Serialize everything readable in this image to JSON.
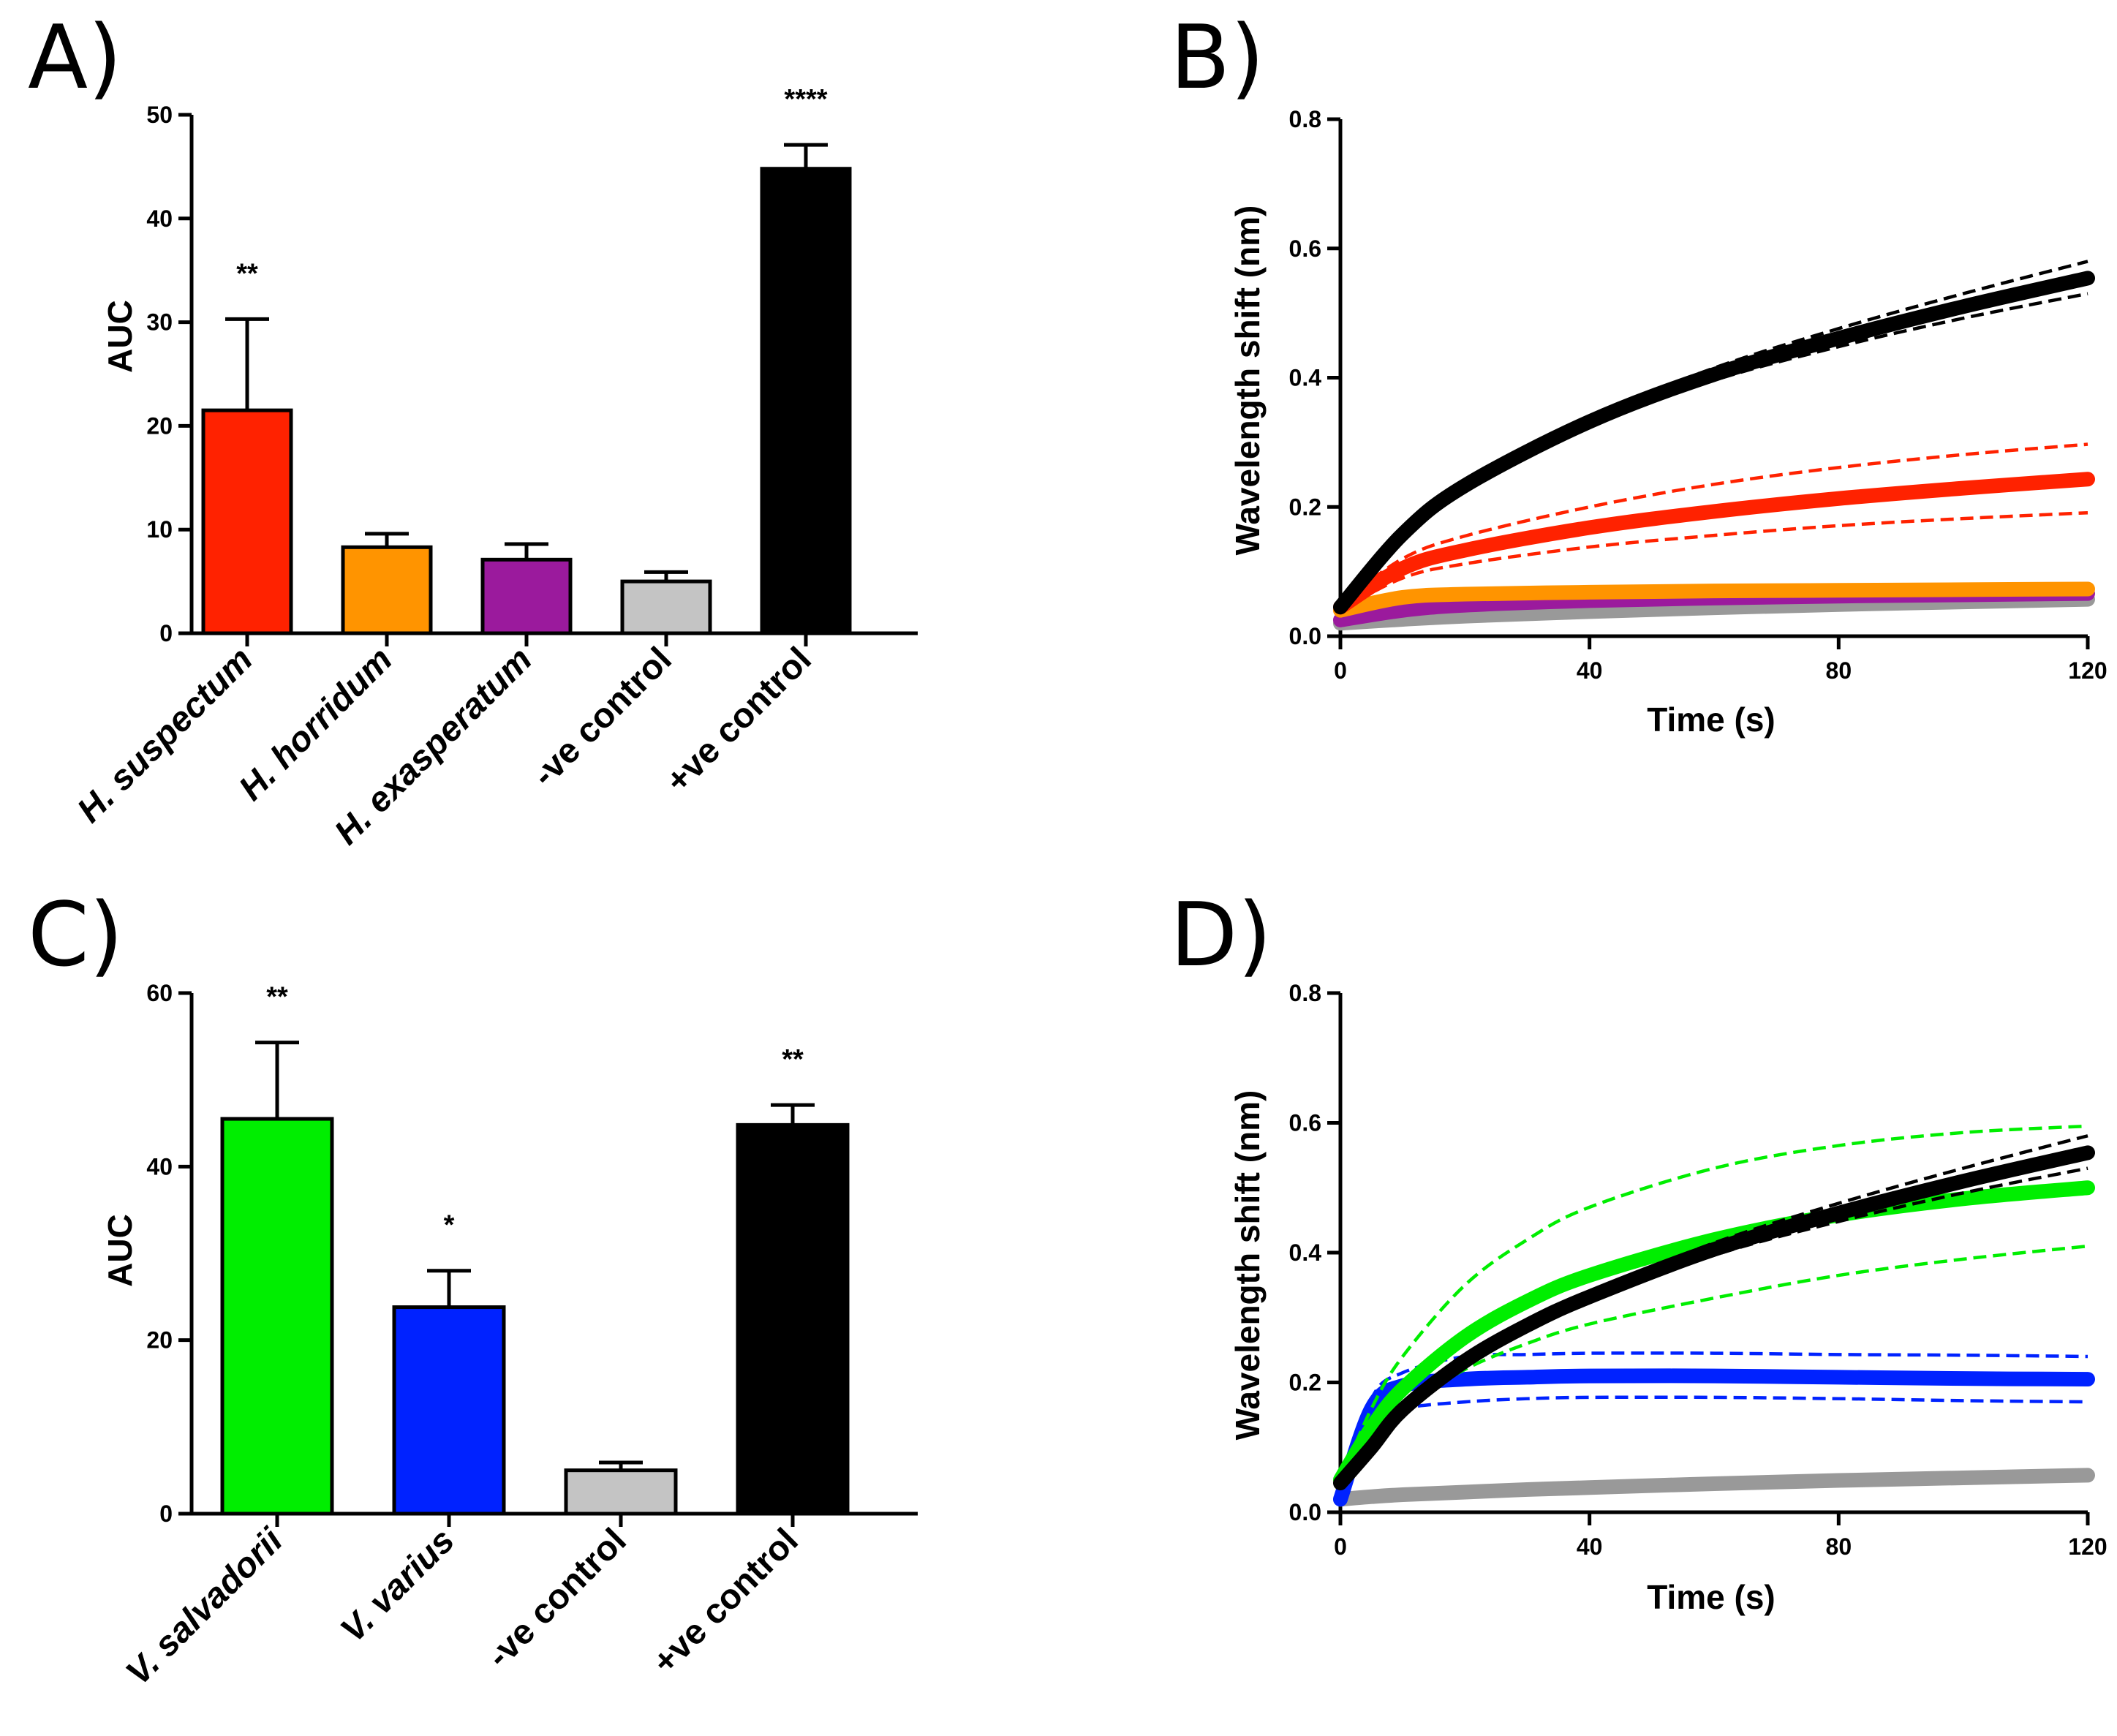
{
  "chart_data": [
    {
      "panel": "A)",
      "type": "bar",
      "ylabel": "AUC",
      "xlabel": "",
      "ylim": [
        0,
        50
      ],
      "yticks": [
        "0",
        "10",
        "20",
        "30",
        "40",
        "50"
      ],
      "categories": [
        "H. suspectum",
        "H. horridum",
        "H. exasperatum",
        "-ve control",
        "+ve control"
      ],
      "italic": [
        true,
        true,
        true,
        false,
        false
      ],
      "values": [
        21.5,
        8.3,
        7.1,
        5.0,
        44.8
      ],
      "errors": [
        8.8,
        1.3,
        1.5,
        0.9,
        2.3
      ],
      "significance": [
        "**",
        "",
        "",
        "",
        "****"
      ],
      "colors": [
        "#ff2200",
        "#ff9400",
        "#9b1a9d",
        "#c4c4c4",
        "#000000"
      ]
    },
    {
      "panel": "B)",
      "type": "line",
      "xlabel": "Time (s)",
      "ylabel": "Wavelength shift (nm)",
      "xlim": [
        0,
        120
      ],
      "ylim": [
        0,
        0.8
      ],
      "xticks": [
        "0",
        "40",
        "80",
        "120"
      ],
      "yticks": [
        "0.0",
        "0.2",
        "0.4",
        "0.6",
        "0.8"
      ],
      "x": [
        0,
        10,
        20,
        40,
        60,
        80,
        100,
        120
      ],
      "series": [
        {
          "name": "-ve control",
          "color": "#999999",
          "values": [
            0.02,
            0.026,
            0.031,
            0.038,
            0.044,
            0.049,
            0.053,
            0.057
          ]
        },
        {
          "name": "H. exasperatum",
          "color": "#9b1a9d",
          "values": [
            0.025,
            0.04,
            0.048,
            0.055,
            0.059,
            0.062,
            0.064,
            0.066
          ]
        },
        {
          "name": "H. horridum",
          "color": "#ff9400",
          "values": [
            0.04,
            0.06,
            0.065,
            0.068,
            0.07,
            0.071,
            0.072,
            0.073
          ]
        },
        {
          "name": "H. suspectum",
          "color": "#ff2200",
          "values": [
            0.045,
            0.105,
            0.133,
            0.168,
            0.193,
            0.213,
            0.229,
            0.243
          ],
          "upper": [
            0.05,
            0.12,
            0.155,
            0.2,
            0.235,
            0.261,
            0.281,
            0.297
          ],
          "lower": [
            0.04,
            0.09,
            0.112,
            0.138,
            0.156,
            0.171,
            0.182,
            0.191
          ]
        },
        {
          "name": "+ve control",
          "color": "#000000",
          "values": [
            0.045,
            0.158,
            0.233,
            0.332,
            0.405,
            0.461,
            0.51,
            0.554
          ],
          "upper": [
            0.046,
            0.16,
            0.236,
            0.338,
            0.415,
            0.476,
            0.53,
            0.58
          ],
          "lower": [
            0.044,
            0.156,
            0.23,
            0.326,
            0.396,
            0.448,
            0.492,
            0.53
          ]
        }
      ]
    },
    {
      "panel": "C)",
      "type": "bar",
      "ylabel": "AUC",
      "xlabel": "",
      "ylim": [
        0,
        60
      ],
      "yticks": [
        "0",
        "20",
        "40",
        "60"
      ],
      "categories": [
        "V. salvadorii",
        "V. varius",
        "-ve control",
        "+ve control"
      ],
      "italic": [
        true,
        true,
        false,
        false
      ],
      "values": [
        45.5,
        23.8,
        5.0,
        44.8
      ],
      "errors": [
        8.8,
        4.2,
        0.9,
        2.3
      ],
      "significance": [
        "**",
        "*",
        "",
        "**"
      ],
      "colors": [
        "#00ee00",
        "#0022ff",
        "#c4c4c4",
        "#000000"
      ]
    },
    {
      "panel": "D)",
      "type": "line",
      "xlabel": "Time (s)",
      "ylabel": "Wavelength shift (nm)",
      "xlim": [
        0,
        120
      ],
      "ylim": [
        0,
        0.8
      ],
      "xticks": [
        "0",
        "40",
        "80",
        "120"
      ],
      "yticks": [
        "0.0",
        "0.2",
        "0.4",
        "0.6",
        "0.8"
      ],
      "x": [
        0,
        5,
        10,
        20,
        30,
        40,
        60,
        80,
        100,
        120
      ],
      "series": [
        {
          "name": "-ve control",
          "color": "#999999",
          "values": [
            0.02,
            0.024,
            0.027,
            0.031,
            0.035,
            0.038,
            0.044,
            0.049,
            0.053,
            0.057
          ]
        },
        {
          "name": "V. varius",
          "color": "#0022ff",
          "values": [
            0.02,
            0.16,
            0.195,
            0.205,
            0.208,
            0.21,
            0.21,
            0.208,
            0.206,
            0.205
          ],
          "upper": [
            0.025,
            0.175,
            0.215,
            0.24,
            0.243,
            0.245,
            0.245,
            0.243,
            0.242,
            0.24
          ],
          "lower": [
            0.015,
            0.14,
            0.16,
            0.17,
            0.175,
            0.177,
            0.177,
            0.175,
            0.172,
            0.17
          ]
        },
        {
          "name": "V. salvadorii",
          "color": "#00ee00",
          "values": [
            0.05,
            0.13,
            0.19,
            0.27,
            0.325,
            0.365,
            0.42,
            0.458,
            0.483,
            0.5
          ],
          "upper": [
            0.05,
            0.16,
            0.24,
            0.35,
            0.42,
            0.47,
            0.53,
            0.565,
            0.585,
            0.595
          ],
          "lower": [
            0.05,
            0.11,
            0.16,
            0.22,
            0.26,
            0.29,
            0.33,
            0.365,
            0.39,
            0.41
          ]
        },
        {
          "name": "+ve control",
          "color": "#000000",
          "values": [
            0.045,
            0.1,
            0.158,
            0.233,
            0.288,
            0.332,
            0.405,
            0.461,
            0.51,
            0.554
          ],
          "upper": [
            0.046,
            0.102,
            0.16,
            0.236,
            0.292,
            0.338,
            0.415,
            0.476,
            0.53,
            0.58
          ],
          "lower": [
            0.044,
            0.098,
            0.156,
            0.23,
            0.284,
            0.326,
            0.396,
            0.448,
            0.492,
            0.53
          ]
        }
      ]
    }
  ]
}
